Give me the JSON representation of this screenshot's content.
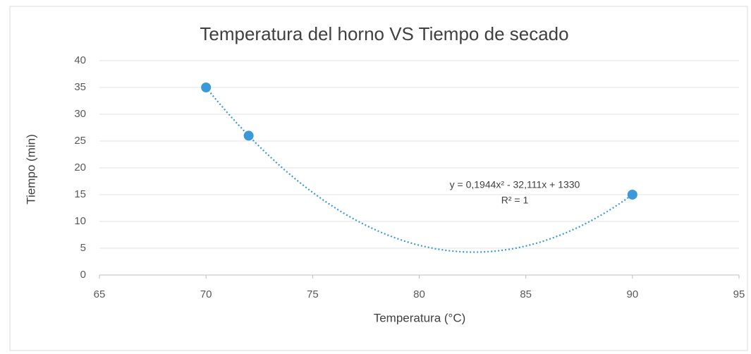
{
  "chart_data": {
    "type": "scatter",
    "title": "Temperatura del horno VS Tiempo de secado",
    "x_label": "Temperatura (°C)",
    "y_label": "Tiempo (min)",
    "x": [
      70,
      72,
      90
    ],
    "values": [
      35,
      26,
      15
    ],
    "color": "#3a9ad9",
    "trendline": "polynomial",
    "annotations": [
      "y = 0,1944x² - 32,111x + 1330",
      "R² = 1"
    ],
    "xlim": [
      65,
      95
    ],
    "xticks": [
      65,
      70,
      75,
      80,
      85,
      90,
      95
    ],
    "ylim": [
      0,
      40
    ],
    "yticks": [
      0,
      5,
      10,
      15,
      20,
      25,
      30,
      35,
      40
    ],
    "grid": true
  }
}
